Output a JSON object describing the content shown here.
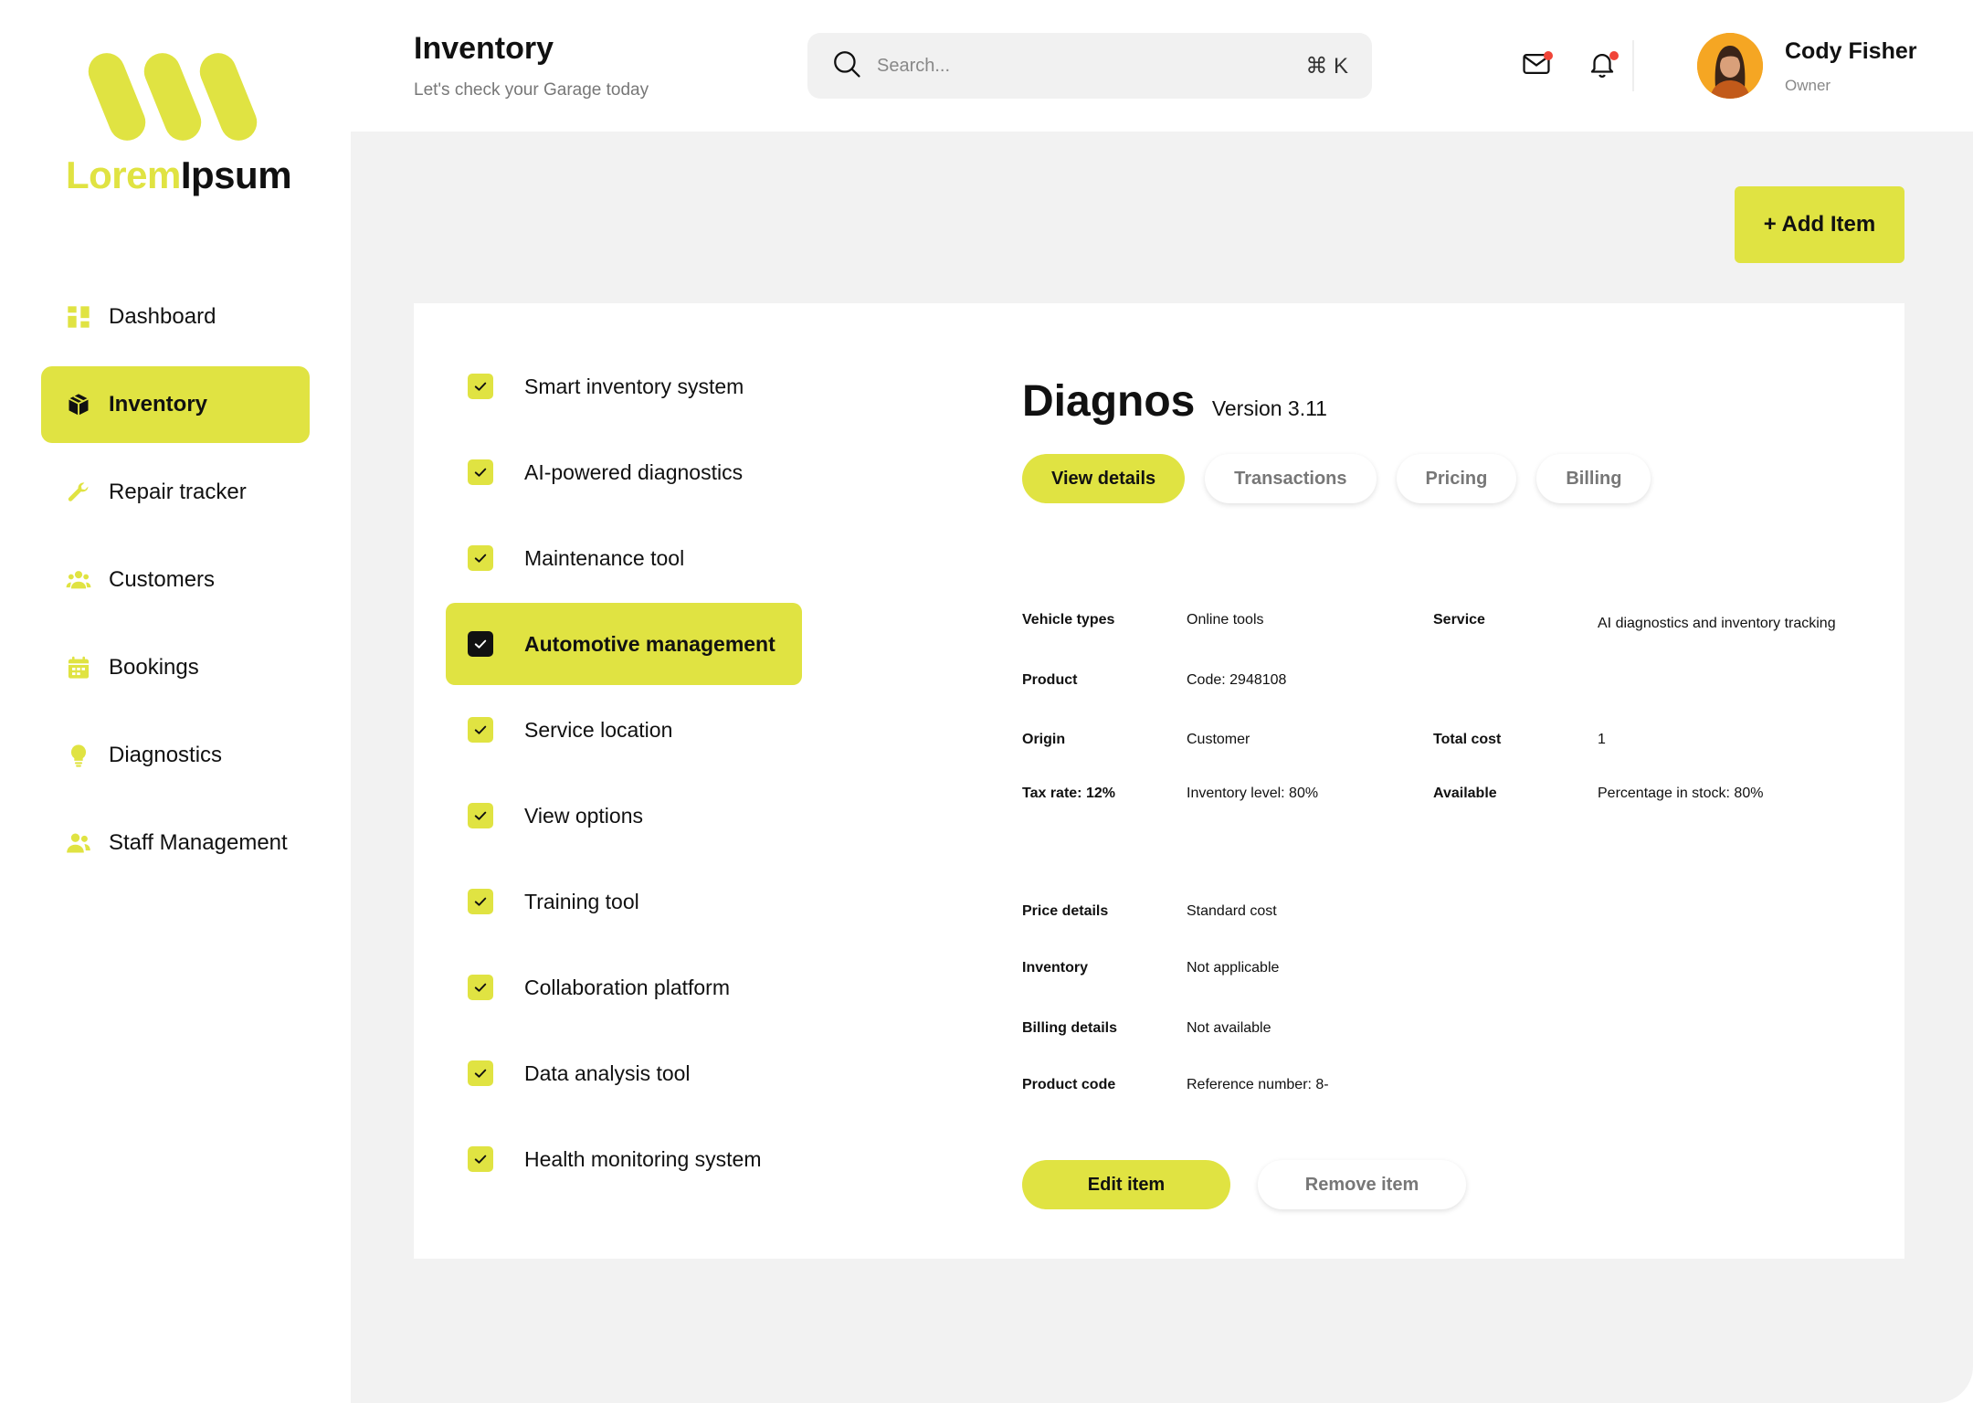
{
  "colors": {
    "accent": "#e0e342",
    "notification": "#f04438"
  },
  "brand": {
    "name_part1": "Lorem",
    "name_part2": "Ipsum"
  },
  "sidebar": {
    "items": [
      {
        "label": "Dashboard",
        "icon": "grid-icon",
        "active": false
      },
      {
        "label": "Inventory",
        "icon": "box-icon",
        "active": true
      },
      {
        "label": "Repair tracker",
        "icon": "wrench-icon",
        "active": false
      },
      {
        "label": "Customers",
        "icon": "users-icon",
        "active": false
      },
      {
        "label": "Bookings",
        "icon": "calendar-icon",
        "active": false
      },
      {
        "label": "Diagnostics",
        "icon": "lightbulb-icon",
        "active": false
      },
      {
        "label": "Staff Management",
        "icon": "staff-icon",
        "active": false
      }
    ]
  },
  "header": {
    "title": "Inventory",
    "subtitle": "Let's check your Garage today",
    "search_placeholder": "Search...",
    "search_shortcut": "⌘ K",
    "user": {
      "name": "Cody Fisher",
      "role": "Owner"
    }
  },
  "main": {
    "add_button_label": "+ Add Item",
    "checklist": [
      {
        "label": "Smart inventory system",
        "active": false
      },
      {
        "label": "AI-powered diagnostics",
        "active": false
      },
      {
        "label": "Maintenance tool",
        "active": false
      },
      {
        "label": "Automotive management",
        "active": true
      },
      {
        "label": "Service location",
        "active": false
      },
      {
        "label": "View options",
        "active": false
      },
      {
        "label": "Training tool",
        "active": false
      },
      {
        "label": "Collaboration platform",
        "active": false
      },
      {
        "label": "Data analysis tool",
        "active": false
      },
      {
        "label": "Health monitoring system",
        "active": false
      }
    ],
    "product": {
      "title": "Diagnos",
      "version": "Version 3.11",
      "tabs": [
        {
          "label": "View details",
          "active": true
        },
        {
          "label": "Transactions",
          "active": false
        },
        {
          "label": "Pricing",
          "active": false
        },
        {
          "label": "Billing",
          "active": false
        }
      ],
      "fields": {
        "vehicle_types_label": "Vehicle types",
        "vehicle_types_value": "Online tools",
        "service_label": "Service",
        "service_value": "AI diagnostics and inventory tracking",
        "product_label": "Product",
        "product_value": "Code: 2948108",
        "origin_label": "Origin",
        "origin_value": "Customer",
        "total_cost_label": "Total cost",
        "total_cost_value": "1",
        "tax_rate_label": "Tax rate: 12%",
        "inventory_level_value": "Inventory level: 80%",
        "available_label": "Available",
        "available_value": "Percentage in stock: 80%",
        "price_details_label": "Price details",
        "price_details_value": "Standard cost",
        "inventory_label": "Inventory",
        "inventory_value": "Not applicable",
        "billing_details_label": "Billing details",
        "billing_details_value": "Not available",
        "product_code_label": "Product code",
        "product_code_value": "Reference number: 8-"
      },
      "edit_label": "Edit item",
      "remove_label": "Remove item"
    }
  }
}
